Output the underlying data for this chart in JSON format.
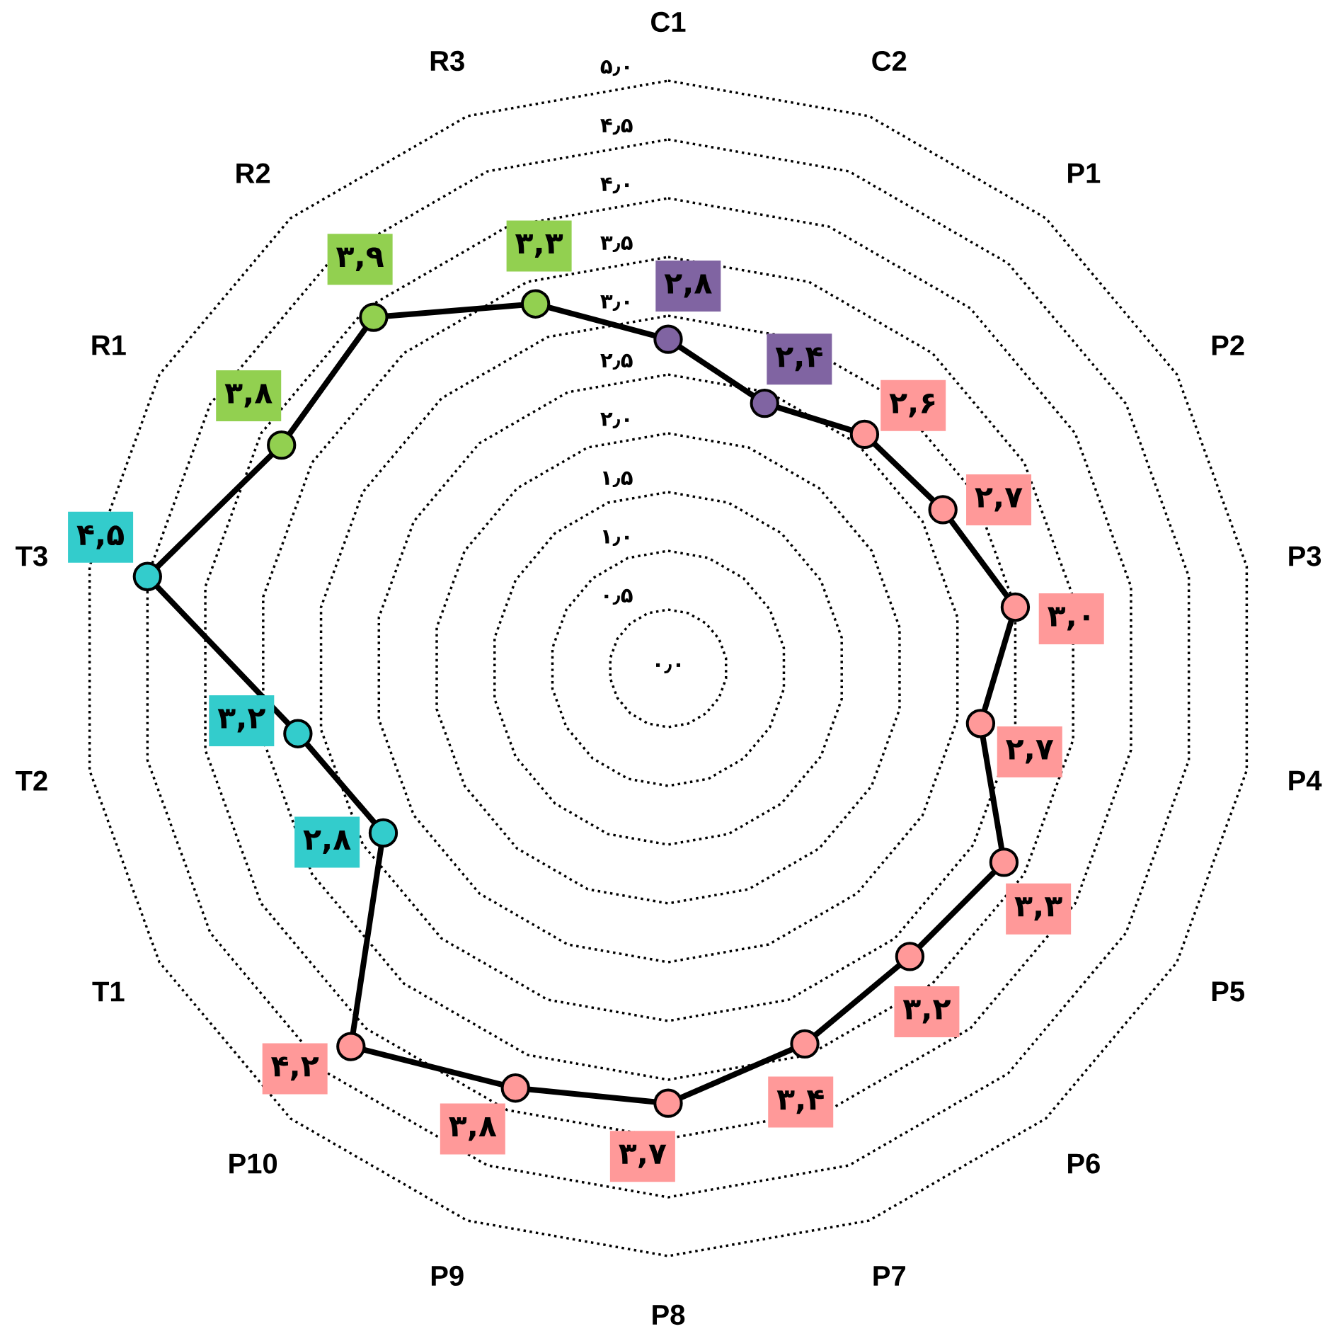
{
  "chart_data": {
    "type": "radar",
    "categories": [
      "C1",
      "C2",
      "P1",
      "P2",
      "P3",
      "P4",
      "P5",
      "P6",
      "P7",
      "P8",
      "P9",
      "P10",
      "T1",
      "T2",
      "T3",
      "R1",
      "R2",
      "R3"
    ],
    "series": [
      {
        "color": "#000000",
        "colors": [
          "#8064a2",
          "#8064a2",
          "#ff9999",
          "#ff9999",
          "#ff9999",
          "#ff9999",
          "#ff9999",
          "#ff9999",
          "#ff9999",
          "#ff9999",
          "#ff9999",
          "#ff9999",
          "#33cccc",
          "#33cccc",
          "#33cccc",
          "#92d050",
          "#92d050",
          "#92d050"
        ],
        "values": [
          2.8,
          2.4,
          2.6,
          2.7,
          3.0,
          2.7,
          3.3,
          3.2,
          3.4,
          3.7,
          3.8,
          4.2,
          2.8,
          3.2,
          4.5,
          3.8,
          3.9,
          3.3
        ],
        "value_labels": [
          "۲,۸",
          "۲,۴",
          "۲,۶",
          "۲,۷",
          "۳,۰",
          "۲,۷",
          "۳,۳",
          "۳,۲",
          "۳,۴",
          "۳,۷",
          "۳,۸",
          "۴,۲",
          "۲,۸",
          "۳,۲",
          "۴,۵",
          "۳,۸",
          "۳,۹",
          "۳,۳"
        ]
      }
    ],
    "ylim": [
      0,
      5
    ],
    "yticks": [
      {
        "value": 0,
        "label": "۰٫۰"
      },
      {
        "value": 0.5,
        "label": "۰٫۵"
      },
      {
        "value": 1,
        "label": "۱٫۰"
      },
      {
        "value": 1.5,
        "label": "۱٫۵"
      },
      {
        "value": 2,
        "label": "۲٫۰"
      },
      {
        "value": 2.5,
        "label": "۲٫۵"
      },
      {
        "value": 3,
        "label": "۳٫۰"
      },
      {
        "value": 3.5,
        "label": "۳٫۵"
      },
      {
        "value": 4,
        "label": "۴٫۰"
      },
      {
        "value": 4.5,
        "label": "۴٫۵"
      },
      {
        "value": 5,
        "label": "۵٫۰"
      }
    ],
    "grid": true,
    "marker": "circle",
    "line_style": "solid"
  }
}
